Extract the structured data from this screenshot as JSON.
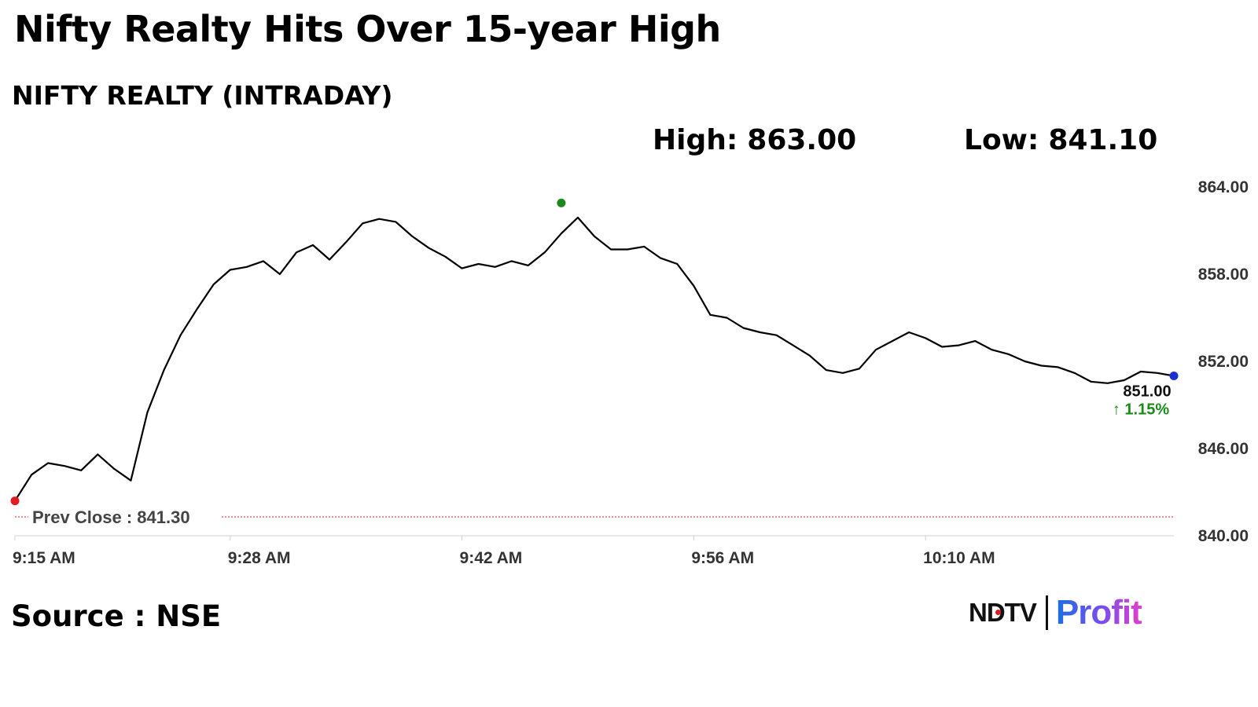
{
  "headline": "Nifty Realty Hits Over 15-year High",
  "subtitle": "NIFTY REALTY (INTRADAY)",
  "stats": {
    "high_label": "High:",
    "high_value": "863.00",
    "low_label": "Low:",
    "low_value": "841.10"
  },
  "source": "Source : NSE",
  "logo": {
    "left": "NDTV",
    "right": "Profit"
  },
  "colors": {
    "line": "#000000",
    "start_marker": "#e01b24",
    "high_marker": "#1a8a1a",
    "last_marker": "#1a2fd0",
    "prev_close_line": "#e01b24",
    "change_up": "#1a8a1a",
    "axis": "#d0d0d0",
    "tick_text": "#333333"
  },
  "chart_data": {
    "type": "line",
    "title": "NIFTY REALTY (INTRADAY)",
    "xlabel": "",
    "ylabel": "",
    "x_ticks": [
      "9:15 AM",
      "9:28 AM",
      "9:42 AM",
      "9:56 AM",
      "10:10 AM"
    ],
    "y_ticks": [
      "840.00",
      "846.00",
      "852.00",
      "858.00",
      "864.00"
    ],
    "ylim": [
      840,
      864
    ],
    "xlim": [
      "9:15",
      "10:25"
    ],
    "grid": false,
    "reference_line": {
      "label": "Prev Close : 841.30",
      "value": 841.3
    },
    "last_value_label": "851.00",
    "change_label": "↑ 1.15%",
    "series": [
      {
        "x": [
          "9:15",
          "9:16",
          "9:17",
          "9:18",
          "9:19",
          "9:20",
          "9:21",
          "9:22",
          "9:23",
          "9:24",
          "9:25",
          "9:26",
          "9:27",
          "9:28",
          "9:29",
          "9:30",
          "9:31",
          "9:32",
          "9:33",
          "9:34",
          "9:35",
          "9:36",
          "9:37",
          "9:38",
          "9:39",
          "9:40",
          "9:41",
          "9:42",
          "9:43",
          "9:44",
          "9:45",
          "9:46",
          "9:47",
          "9:48",
          "9:49",
          "9:50",
          "9:51",
          "9:52",
          "9:53",
          "9:54",
          "9:55",
          "9:56",
          "9:57",
          "9:58",
          "9:59",
          "10:00",
          "10:01",
          "10:02",
          "10:03",
          "10:04",
          "10:05",
          "10:06",
          "10:07",
          "10:08",
          "10:09",
          "10:10",
          "10:11",
          "10:12",
          "10:13",
          "10:14",
          "10:15",
          "10:16",
          "10:17",
          "10:18",
          "10:19",
          "10:20",
          "10:21",
          "10:22",
          "10:23",
          "10:24",
          "10:25"
        ],
        "y": [
          842.4,
          844.2,
          845.0,
          844.8,
          844.5,
          845.6,
          844.6,
          843.8,
          848.5,
          851.4,
          853.8,
          855.6,
          857.3,
          858.3,
          858.5,
          858.9,
          858.0,
          859.5,
          860.0,
          859.0,
          860.2,
          861.5,
          861.8,
          861.6,
          860.6,
          859.8,
          859.2,
          858.4,
          858.7,
          858.5,
          858.9,
          858.6,
          859.5,
          860.8,
          861.9,
          860.6,
          859.7,
          859.7,
          859.9,
          859.1,
          858.7,
          857.2,
          855.2,
          855.0,
          854.3,
          854.0,
          853.8,
          853.1,
          852.4,
          851.4,
          851.2,
          851.5,
          852.8,
          853.4,
          854.0,
          853.6,
          853.0,
          853.1,
          853.4,
          852.8,
          852.5,
          852.0,
          851.7,
          851.6,
          851.2,
          850.6,
          850.5,
          850.7,
          851.3,
          851.2,
          851.0
        ]
      }
    ],
    "markers": [
      {
        "name": "open",
        "x": "9:15",
        "y": 842.4
      },
      {
        "name": "high",
        "x": "9:48",
        "y": 862.9
      },
      {
        "name": "last",
        "x": "10:25",
        "y": 851.0
      }
    ]
  }
}
